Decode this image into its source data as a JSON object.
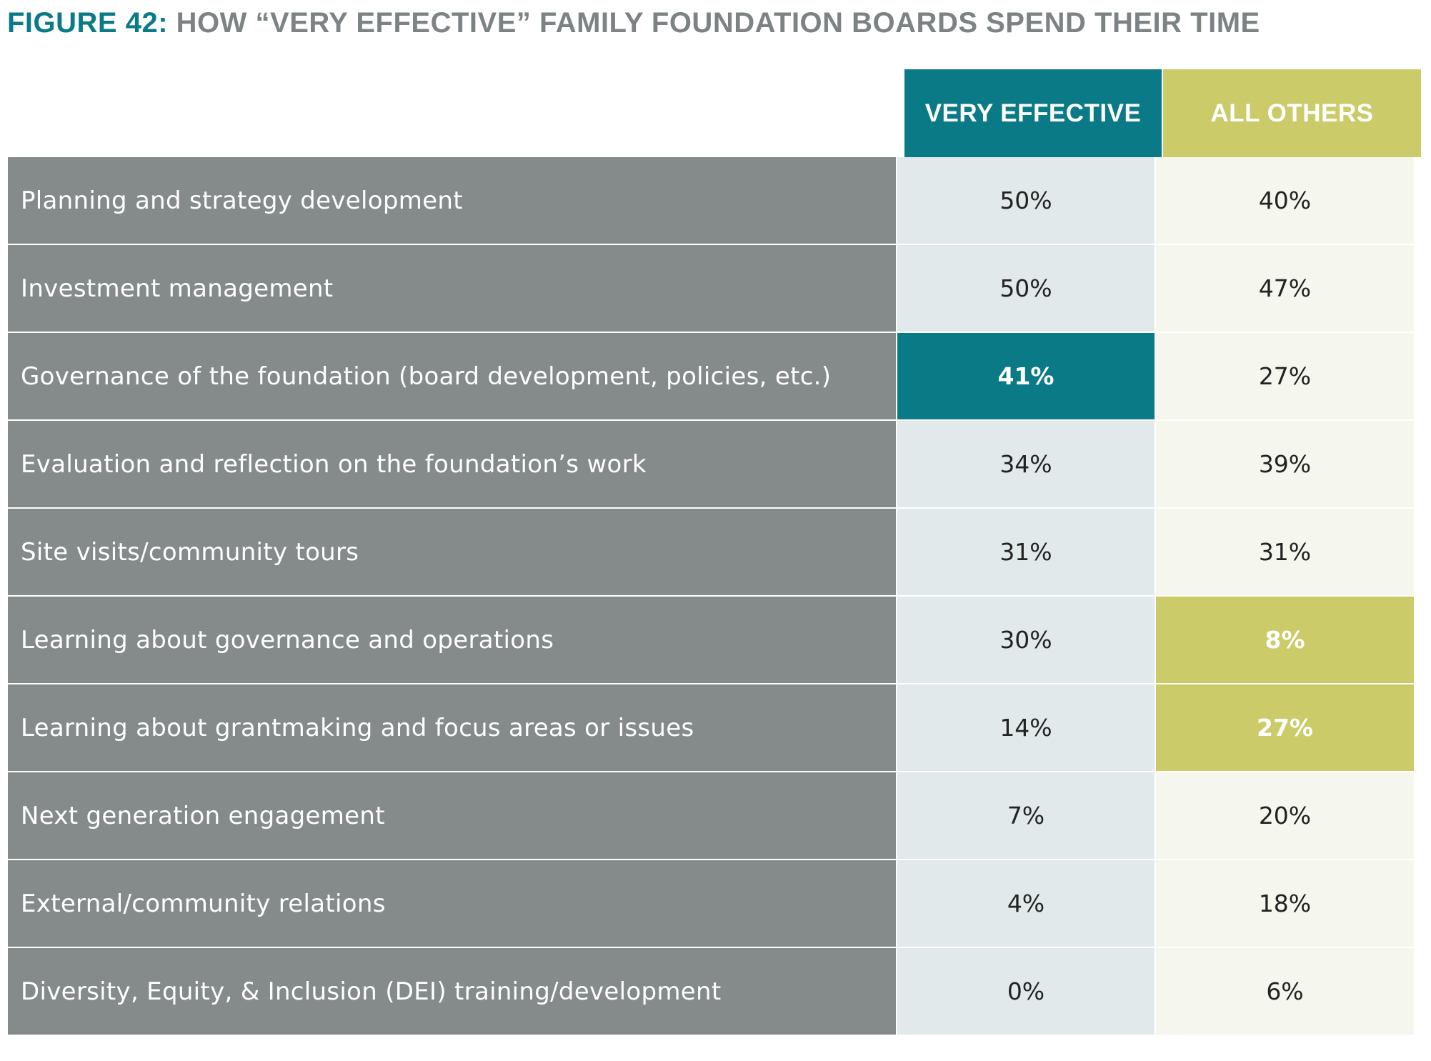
{
  "title": {
    "prefix": "FIGURE 42:",
    "text": "HOW “VERY EFFECTIVE” FAMILY FOUNDATION BOARDS SPEND THEIR TIME"
  },
  "colors": {
    "teal": "#0b7a87",
    "olive": "#cbcb6a",
    "label_bg": "#858a8a",
    "ve_bg": "#e2e9ea",
    "ao_bg": "#f5f6ee",
    "title_gray": "#7d8384"
  },
  "chart_data": {
    "type": "table",
    "columns": [
      "VERY EFFECTIVE",
      "ALL OTHERS"
    ],
    "rows": [
      {
        "label": "Planning and strategy development",
        "very_effective": "50%",
        "all_others": "40%",
        "highlight": null
      },
      {
        "label": "Investment management",
        "very_effective": "50%",
        "all_others": "47%",
        "highlight": null
      },
      {
        "label": "Governance of the foundation (board development, policies, etc.)",
        "very_effective": "41%",
        "all_others": "27%",
        "highlight": "very_effective"
      },
      {
        "label": "Evaluation and reflection on the foundation’s work",
        "very_effective": "34%",
        "all_others": "39%",
        "highlight": null
      },
      {
        "label": "Site visits/community tours",
        "very_effective": "31%",
        "all_others": "31%",
        "highlight": null
      },
      {
        "label": "Learning about governance and operations",
        "very_effective": "30%",
        "all_others": "8%",
        "highlight": "all_others"
      },
      {
        "label": "Learning about grantmaking and focus areas or issues",
        "very_effective": "14%",
        "all_others": "27%",
        "highlight": "all_others"
      },
      {
        "label": "Next generation engagement",
        "very_effective": "7%",
        "all_others": "20%",
        "highlight": null
      },
      {
        "label": "External/community relations",
        "very_effective": "4%",
        "all_others": "18%",
        "highlight": null
      },
      {
        "label": "Diversity, Equity, & Inclusion (DEI) training/development",
        "very_effective": "0%",
        "all_others": "6%",
        "highlight": null
      }
    ]
  }
}
